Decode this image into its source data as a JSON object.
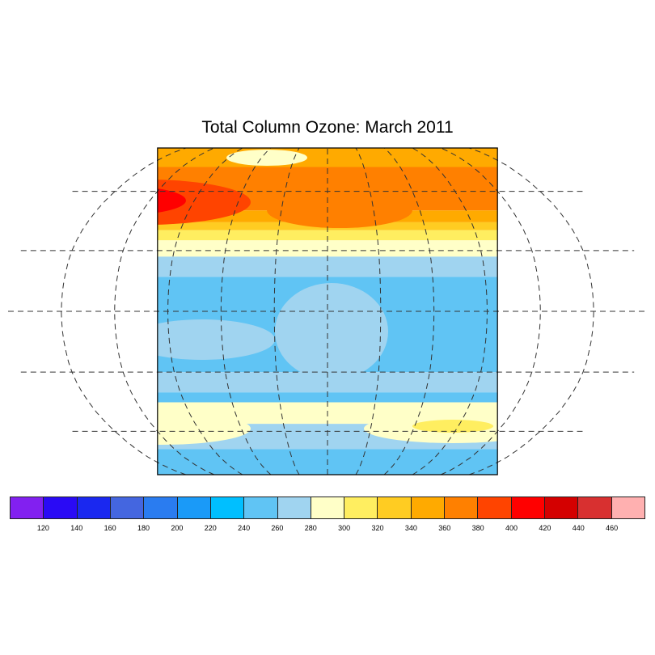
{
  "title": "Total Column Ozone: March 2011",
  "map": {
    "projection": "Robinson",
    "grid": "dashed, 30 degree spacing",
    "levels": [
      120,
      140,
      160,
      180,
      200,
      220,
      240,
      260,
      280,
      300,
      320,
      340,
      360,
      380,
      400,
      420,
      440,
      460
    ],
    "colors": [
      "#8220F0",
      "#2A0AF5",
      "#1A28F0",
      "#4466E0",
      "#2A7CF0",
      "#1A9AF8",
      "#00BFFF",
      "#60C4F4",
      "#A0D4F0",
      "#FFFFC8",
      "#FFEE60",
      "#FFCC22",
      "#FFAA00",
      "#FF8000",
      "#FF4400",
      "#FF0000",
      "#D40000",
      "#D83030",
      "#FFB0B0"
    ]
  }
}
